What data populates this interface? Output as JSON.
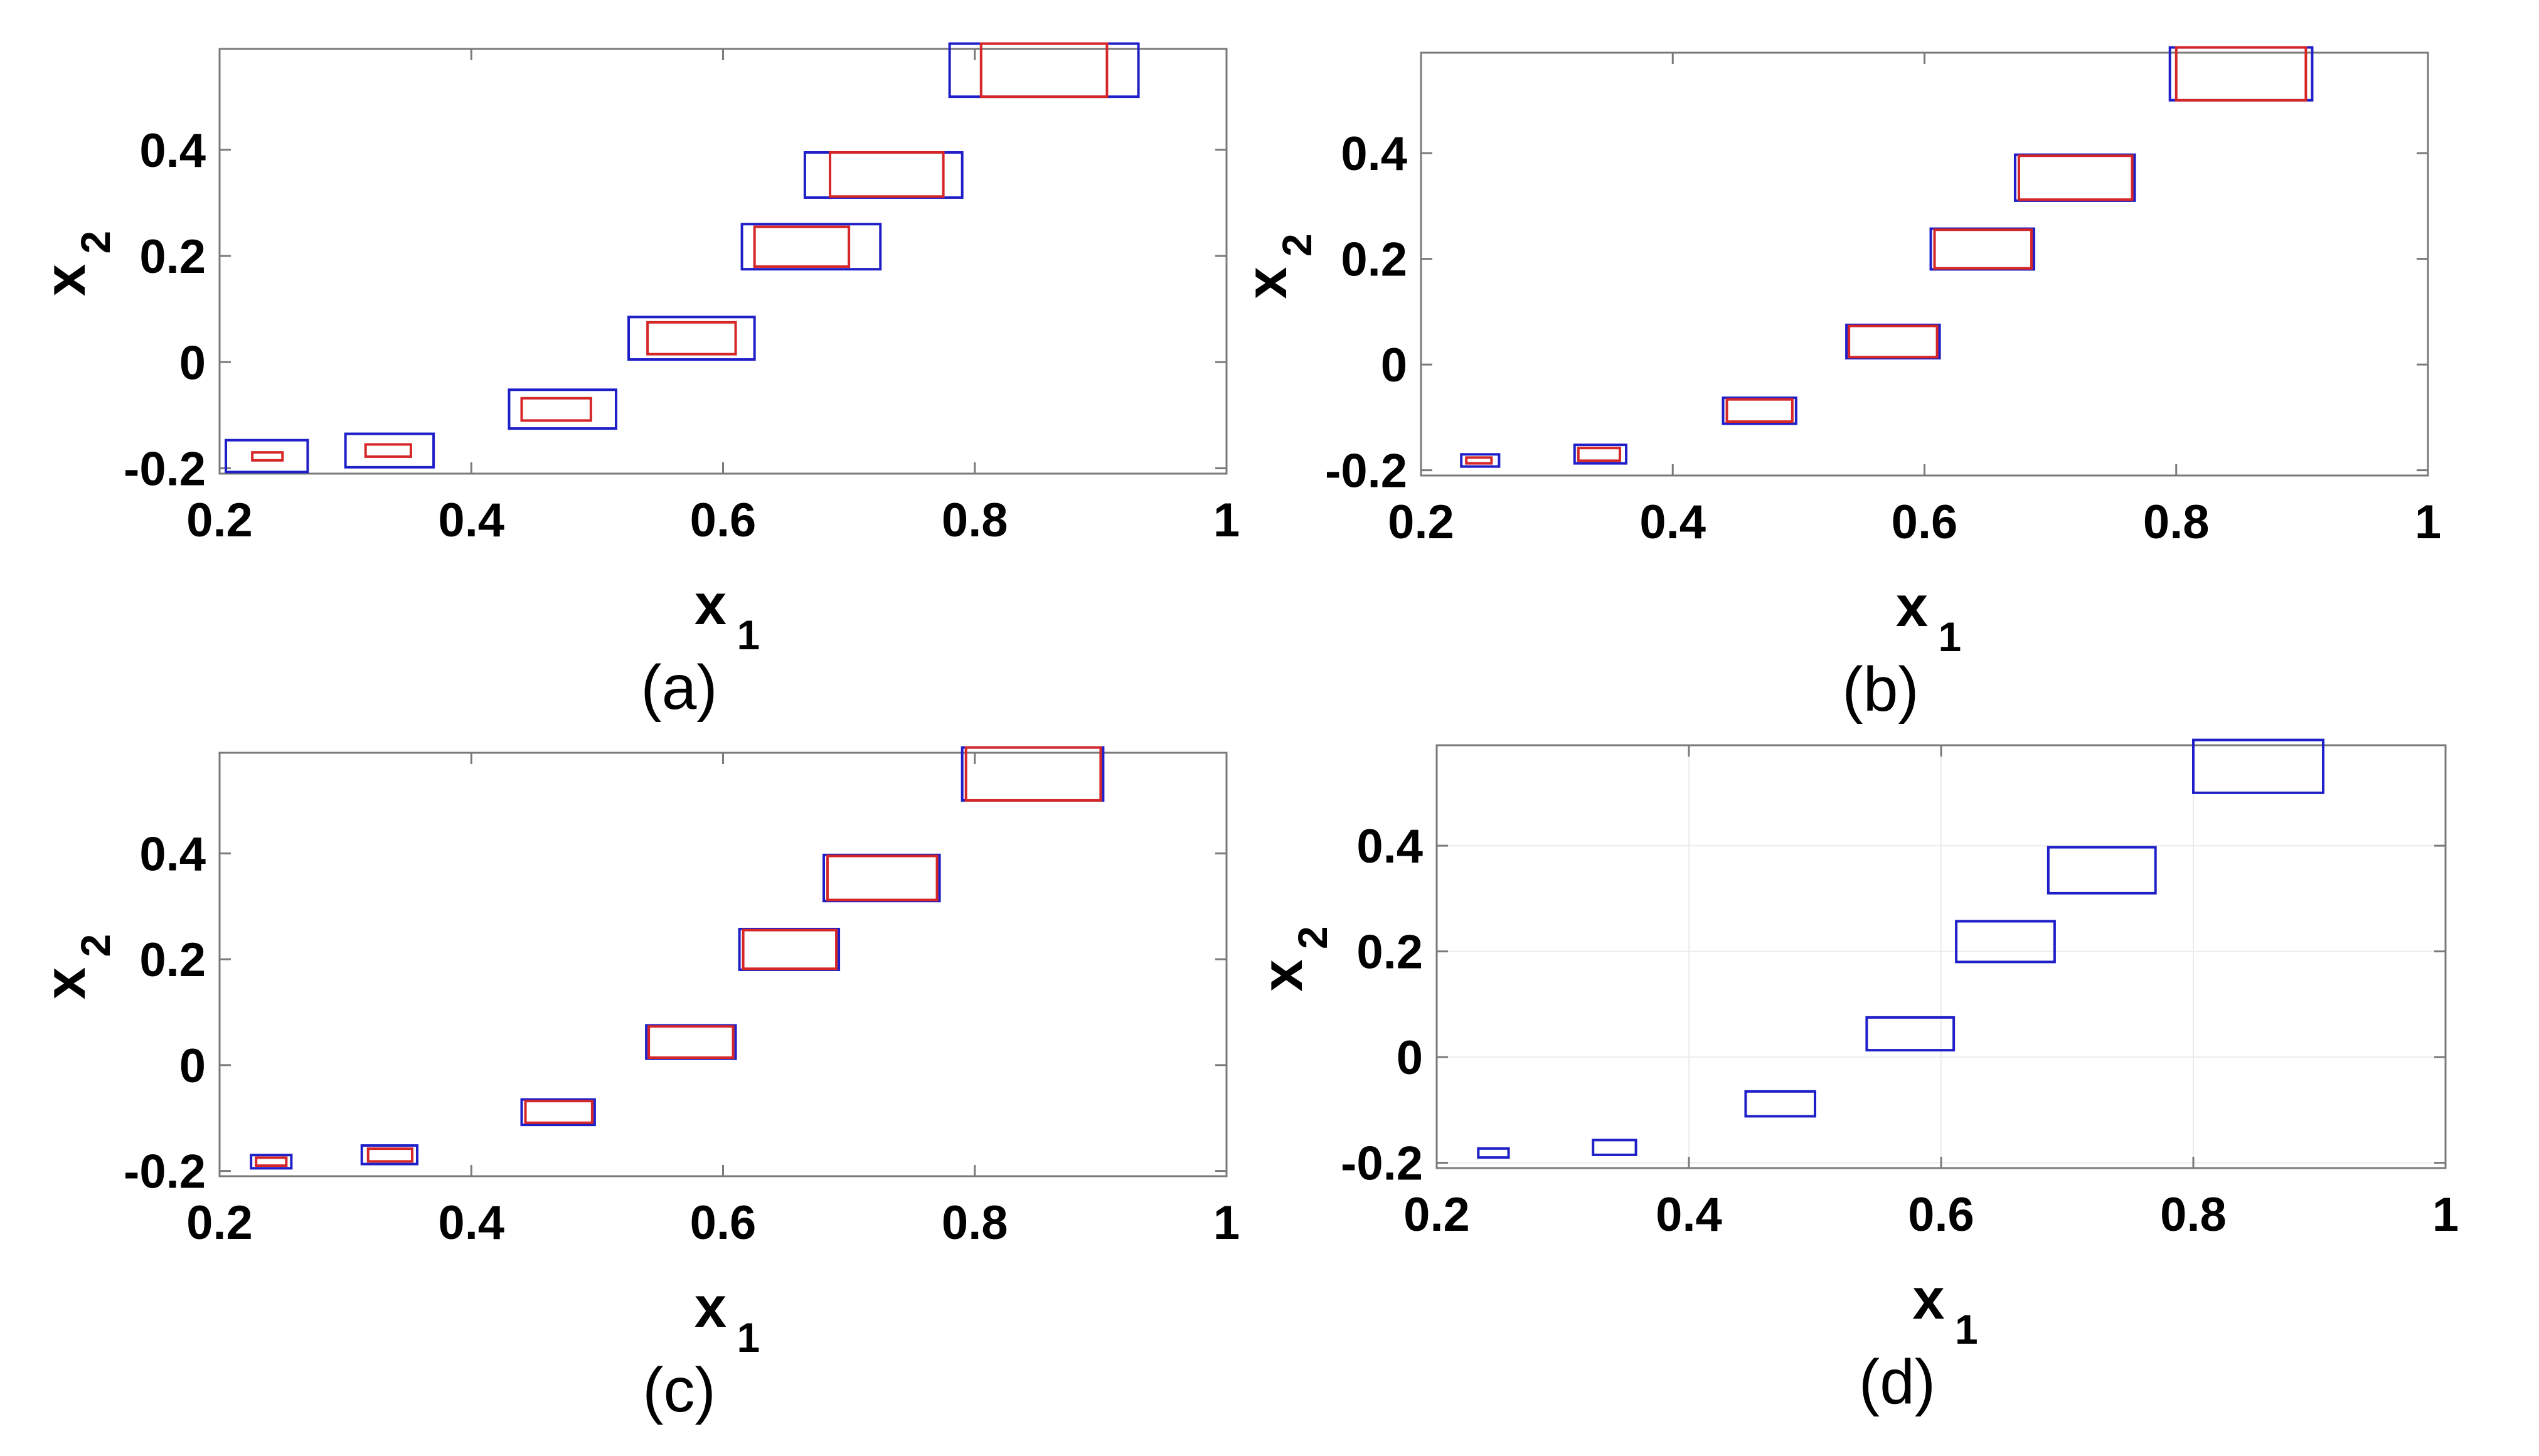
{
  "colors": {
    "outer_box": "#1f1fc8",
    "inner_box": "#d62728",
    "frame": "#7a7a7a",
    "grid": "#ececec"
  },
  "chart_data": [
    {
      "type": "scatter",
      "caption": "(a)",
      "xlabel": "x",
      "xlabel_sub": "1",
      "ylabel": "x",
      "ylabel_sub": "2",
      "xlim": [
        0.2,
        1.0
      ],
      "ylim": [
        -0.21,
        0.59
      ],
      "xticks": [
        "0.2",
        "0.4",
        "0.6",
        "0.8",
        "1"
      ],
      "xtick_values": [
        0.2,
        0.4,
        0.6,
        0.8,
        1.0
      ],
      "yticks": [
        "-0.2",
        "0",
        "0.2",
        "0.4"
      ],
      "ytick_values": [
        -0.2,
        0.0,
        0.2,
        0.4
      ],
      "grid": false,
      "series": [
        {
          "role": "outer",
          "boxes": [
            {
              "x": [
                0.205,
                0.27
              ],
              "y": [
                -0.207,
                -0.147
              ]
            },
            {
              "x": [
                0.3,
                0.37
              ],
              "y": [
                -0.198,
                -0.135
              ]
            },
            {
              "x": [
                0.43,
                0.515
              ],
              "y": [
                -0.125,
                -0.052
              ]
            },
            {
              "x": [
                0.525,
                0.625
              ],
              "y": [
                0.005,
                0.085
              ]
            },
            {
              "x": [
                0.615,
                0.725
              ],
              "y": [
                0.175,
                0.26
              ]
            },
            {
              "x": [
                0.665,
                0.79
              ],
              "y": [
                0.31,
                0.395
              ]
            },
            {
              "x": [
                0.78,
                0.93
              ],
              "y": [
                0.5,
                0.6
              ]
            }
          ]
        },
        {
          "role": "inner",
          "boxes": [
            {
              "x": [
                0.226,
                0.25
              ],
              "y": [
                -0.185,
                -0.17
              ]
            },
            {
              "x": [
                0.316,
                0.352
              ],
              "y": [
                -0.178,
                -0.155
              ]
            },
            {
              "x": [
                0.44,
                0.495
              ],
              "y": [
                -0.11,
                -0.068
              ]
            },
            {
              "x": [
                0.54,
                0.61
              ],
              "y": [
                0.015,
                0.075
              ]
            },
            {
              "x": [
                0.625,
                0.7
              ],
              "y": [
                0.18,
                0.255
              ]
            },
            {
              "x": [
                0.685,
                0.775
              ],
              "y": [
                0.312,
                0.395
              ]
            },
            {
              "x": [
                0.805,
                0.905
              ],
              "y": [
                0.5,
                0.6
              ]
            }
          ]
        }
      ]
    },
    {
      "type": "scatter",
      "caption": "(b)",
      "xlabel": "x",
      "xlabel_sub": "1",
      "ylabel": "x",
      "ylabel_sub": "2",
      "xlim": [
        0.2,
        1.0
      ],
      "ylim": [
        -0.21,
        0.59
      ],
      "xticks": [
        "0.2",
        "0.4",
        "0.6",
        "0.8",
        "1"
      ],
      "xtick_values": [
        0.2,
        0.4,
        0.6,
        0.8,
        1.0
      ],
      "yticks": [
        "-0.2",
        "0",
        "0.2",
        "0.4"
      ],
      "ytick_values": [
        -0.2,
        0.0,
        0.2,
        0.4
      ],
      "grid": false,
      "series": [
        {
          "role": "outer",
          "boxes": [
            {
              "x": [
                0.232,
                0.262
              ],
              "y": [
                -0.193,
                -0.17
              ]
            },
            {
              "x": [
                0.322,
                0.363
              ],
              "y": [
                -0.187,
                -0.152
              ]
            },
            {
              "x": [
                0.44,
                0.498
              ],
              "y": [
                -0.112,
                -0.063
              ]
            },
            {
              "x": [
                0.538,
                0.612
              ],
              "y": [
                0.012,
                0.075
              ]
            },
            {
              "x": [
                0.605,
                0.687
              ],
              "y": [
                0.18,
                0.257
              ]
            },
            {
              "x": [
                0.672,
                0.767
              ],
              "y": [
                0.31,
                0.397
              ]
            },
            {
              "x": [
                0.795,
                0.908
              ],
              "y": [
                0.5,
                0.6
              ]
            }
          ]
        },
        {
          "role": "inner",
          "boxes": [
            {
              "x": [
                0.236,
                0.256
              ],
              "y": [
                -0.187,
                -0.176
              ]
            },
            {
              "x": [
                0.325,
                0.358
              ],
              "y": [
                -0.182,
                -0.158
              ]
            },
            {
              "x": [
                0.443,
                0.495
              ],
              "y": [
                -0.108,
                -0.066
              ]
            },
            {
              "x": [
                0.54,
                0.61
              ],
              "y": [
                0.014,
                0.073
              ]
            },
            {
              "x": [
                0.608,
                0.685
              ],
              "y": [
                0.182,
                0.255
              ]
            },
            {
              "x": [
                0.675,
                0.765
              ],
              "y": [
                0.312,
                0.395
              ]
            },
            {
              "x": [
                0.8,
                0.903
              ],
              "y": [
                0.5,
                0.6
              ]
            }
          ]
        }
      ]
    },
    {
      "type": "scatter",
      "caption": "(c)",
      "xlabel": "x",
      "xlabel_sub": "1",
      "ylabel": "x",
      "ylabel_sub": "2",
      "xlim": [
        0.2,
        1.0
      ],
      "ylim": [
        -0.21,
        0.59
      ],
      "xticks": [
        "0.2",
        "0.4",
        "0.6",
        "0.8",
        "1"
      ],
      "xtick_values": [
        0.2,
        0.4,
        0.6,
        0.8,
        1.0
      ],
      "yticks": [
        "-0.2",
        "0",
        "0.2",
        "0.4"
      ],
      "ytick_values": [
        -0.2,
        0.0,
        0.2,
        0.4
      ],
      "grid": false,
      "series": [
        {
          "role": "outer",
          "boxes": [
            {
              "x": [
                0.225,
                0.257
              ],
              "y": [
                -0.195,
                -0.17
              ]
            },
            {
              "x": [
                0.313,
                0.357
              ],
              "y": [
                -0.187,
                -0.152
              ]
            },
            {
              "x": [
                0.44,
                0.498
              ],
              "y": [
                -0.113,
                -0.065
              ]
            },
            {
              "x": [
                0.539,
                0.61
              ],
              "y": [
                0.012,
                0.075
              ]
            },
            {
              "x": [
                0.613,
                0.692
              ],
              "y": [
                0.18,
                0.257
              ]
            },
            {
              "x": [
                0.68,
                0.772
              ],
              "y": [
                0.31,
                0.397
              ]
            },
            {
              "x": [
                0.79,
                0.902
              ],
              "y": [
                0.5,
                0.6
              ]
            }
          ]
        },
        {
          "role": "inner",
          "boxes": [
            {
              "x": [
                0.229,
                0.253
              ],
              "y": [
                -0.19,
                -0.175
              ]
            },
            {
              "x": [
                0.318,
                0.353
              ],
              "y": [
                -0.182,
                -0.158
              ]
            },
            {
              "x": [
                0.443,
                0.496
              ],
              "y": [
                -0.109,
                -0.068
              ]
            },
            {
              "x": [
                0.541,
                0.608
              ],
              "y": [
                0.014,
                0.073
              ]
            },
            {
              "x": [
                0.616,
                0.69
              ],
              "y": [
                0.182,
                0.255
              ]
            },
            {
              "x": [
                0.683,
                0.77
              ],
              "y": [
                0.312,
                0.395
              ]
            },
            {
              "x": [
                0.793,
                0.9
              ],
              "y": [
                0.5,
                0.6
              ]
            }
          ]
        }
      ]
    },
    {
      "type": "scatter",
      "caption": "(d)",
      "xlabel": "x",
      "xlabel_sub": "1",
      "ylabel": "x",
      "ylabel_sub": "2",
      "xlim": [
        0.2,
        1.0
      ],
      "ylim": [
        -0.21,
        0.59
      ],
      "xticks": [
        "0.2",
        "0.4",
        "0.6",
        "0.8",
        "1"
      ],
      "xtick_values": [
        0.2,
        0.4,
        0.6,
        0.8,
        1.0
      ],
      "yticks": [
        "-0.2",
        "0",
        "0.2",
        "0.4"
      ],
      "ytick_values": [
        -0.2,
        0.0,
        0.2,
        0.4
      ],
      "grid": true,
      "series": [
        {
          "role": "outer",
          "boxes": [
            {
              "x": [
                0.233,
                0.257
              ],
              "y": [
                -0.19,
                -0.173
              ]
            },
            {
              "x": [
                0.324,
                0.358
              ],
              "y": [
                -0.185,
                -0.157
              ]
            },
            {
              "x": [
                0.445,
                0.5
              ],
              "y": [
                -0.112,
                -0.065
              ]
            },
            {
              "x": [
                0.541,
                0.61
              ],
              "y": [
                0.013,
                0.075
              ]
            },
            {
              "x": [
                0.612,
                0.69
              ],
              "y": [
                0.18,
                0.257
              ]
            },
            {
              "x": [
                0.685,
                0.77
              ],
              "y": [
                0.31,
                0.397
              ]
            },
            {
              "x": [
                0.8,
                0.903
              ],
              "y": [
                0.5,
                0.6
              ]
            }
          ]
        }
      ]
    }
  ]
}
